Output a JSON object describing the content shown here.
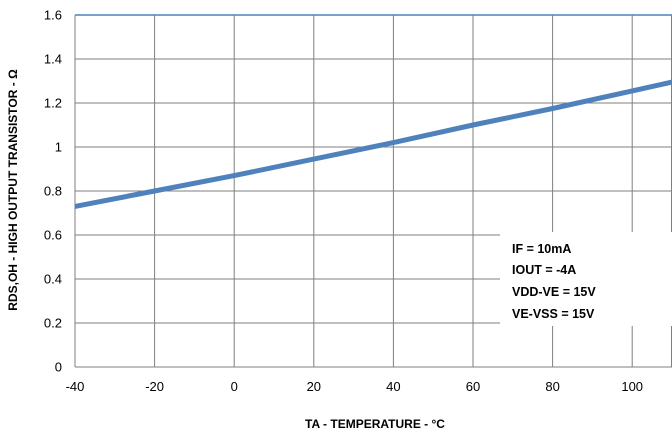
{
  "chart_data": {
    "type": "line",
    "xlabel": "TA - TEMPERATURE - °C",
    "ylabel": "RDS,OH - HIGH OUTPUT TRANSISTOR - Ω",
    "xlim": [
      -40,
      110
    ],
    "ylim": [
      0,
      1.6
    ],
    "x_ticks": [
      "-40",
      "-20",
      "0",
      "20",
      "40",
      "60",
      "80",
      "100"
    ],
    "y_ticks": [
      "0",
      "0.2",
      "0.4",
      "0.6",
      "0.8",
      "1",
      "1.2",
      "1.4",
      "1.6"
    ],
    "grid": true,
    "series": [
      {
        "color": "#4f81bd",
        "x": [
          -40,
          -20,
          0,
          20,
          40,
          60,
          80,
          100,
          110
        ],
        "y": [
          0.73,
          0.8,
          0.87,
          0.945,
          1.02,
          1.1,
          1.175,
          1.255,
          1.295
        ]
      }
    ],
    "annotation": [
      "IF = 10mA",
      "IOUT = -4A",
      "VDD-VE = 15V",
      "VE-VSS = 15V"
    ]
  },
  "colors": {
    "grid": "#7f7f7f",
    "line": "#4f81bd",
    "top_border": "#4f81bd"
  }
}
